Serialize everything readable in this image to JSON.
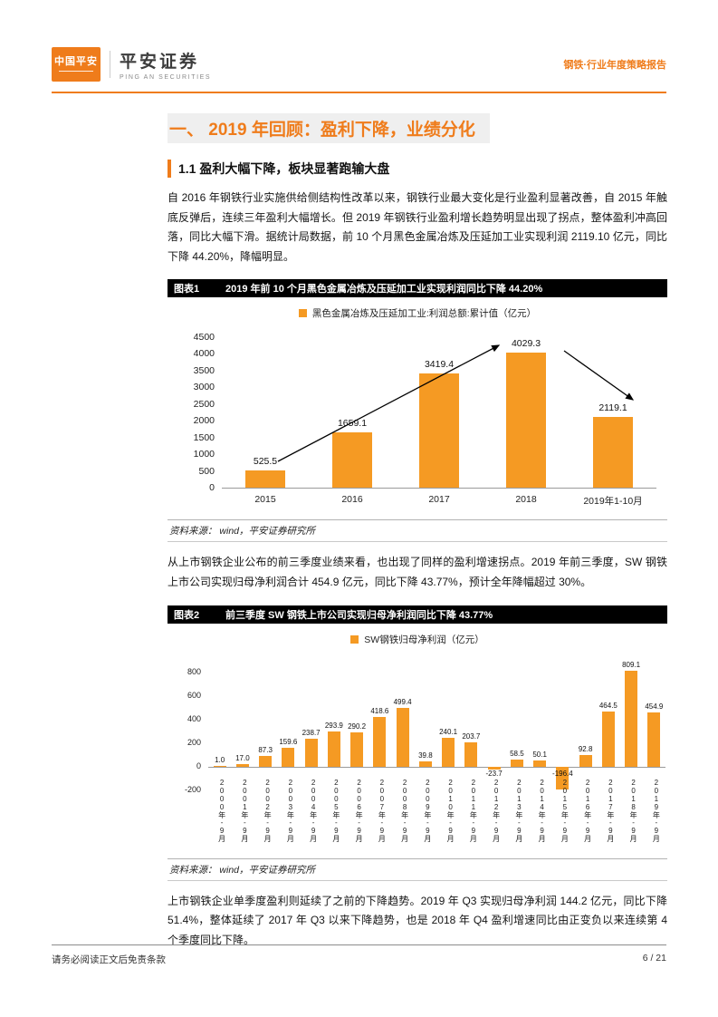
{
  "colors": {
    "accent": "#EF7C1B",
    "bar_color": "#F59A23",
    "chart_header_bg": "#000000",
    "section_title_bg": "#EFEFEF"
  },
  "header": {
    "logo_text": "中国平安",
    "brand": "平安证券",
    "brand_sub": "PING AN SECURITIES",
    "report_tag": "钢铁·行业年度策略报告"
  },
  "section": {
    "title": "一、 2019 年回顾：盈利下降，业绩分化",
    "subsection": "1.1 盈利大幅下降，板块显著跑输大盘"
  },
  "paragraphs": {
    "p1": "自 2016 年钢铁行业实施供给侧结构性改革以来，钢铁行业最大变化是行业盈利显著改善，自 2015 年触底反弹后，连续三年盈利大幅增长。但 2019 年钢铁行业盈利增长趋势明显出现了拐点，整体盈利冲高回落，同比大幅下滑。据统计局数据，前 10 个月黑色金属冶炼及压延加工业实现利润 2119.10 亿元，同比下降 44.20%，降幅明显。",
    "p2": "从上市钢铁企业公布的前三季度业绩来看，也出现了同样的盈利增速拐点。2019 年前三季度，SW 钢铁上市公司实现归母净利润合计 454.9 亿元，同比下降 43.77%，预计全年降幅超过 30%。",
    "p3": "上市钢铁企业单季度盈利则延续了之前的下降趋势。2019 年 Q3 实现归母净利润 144.2 亿元，同比下降 51.4%，整体延续了 2017 年 Q3 以来下降趋势，也是 2018 年 Q4 盈利增速同比由正变负以来连续第 4 个季度同比下降。"
  },
  "chart1": {
    "label": "图表1",
    "title": "2019 年前 10 个月黑色金属冶炼及压延加工业实现利润同比下降 44.20%",
    "source": "资料来源： wind，平安证券研究所",
    "chart_data": {
      "type": "bar",
      "legend": "黑色金属冶炼及压延加工业:利润总额:累计值（亿元）",
      "categories": [
        "2015",
        "2016",
        "2017",
        "2018",
        "2019年1-10月"
      ],
      "values": [
        525.5,
        1659.1,
        3419.4,
        4029.3,
        2119.1
      ],
      "ylim": [
        0,
        4500
      ],
      "ytick_step": 500,
      "grid": false,
      "legend_position": "top",
      "annotations": [
        "rise-trend-arrow from 2015 toward 2018",
        "fall-trend-arrow from 2018 toward 2019"
      ]
    }
  },
  "chart2": {
    "label": "图表2",
    "title": "前三季度 SW 钢铁上市公司实现归母净利润同比下降 43.77%",
    "source": "资料来源： wind，平安证券研究所",
    "chart_data": {
      "type": "bar",
      "legend": "SW钢铁归母净利润（亿元）",
      "categories": [
        "2000年-9月",
        "2001年-9月",
        "2002年-9月",
        "2003年-9月",
        "2004年-9月",
        "2005年-9月",
        "2006年-9月",
        "2007年-9月",
        "2008年-9月",
        "2009年-9月",
        "2010年-9月",
        "2011年-9月",
        "2012年-9月",
        "2013年-9月",
        "2014年-9月",
        "2015年-9月",
        "2016年-9月",
        "2017年-9月",
        "2018年-9月",
        "2019年-9月"
      ],
      "values": [
        1.0,
        17.0,
        87.3,
        159.6,
        238.7,
        293.9,
        290.2,
        418.6,
        499.4,
        39.8,
        240.1,
        203.7,
        -23.7,
        58.5,
        50.1,
        -196.4,
        92.8,
        464.5,
        809.1,
        454.9
      ],
      "ylim": [
        -200,
        800
      ],
      "ytick_step": 200,
      "grid": false,
      "legend_position": "top"
    }
  },
  "footer": {
    "disclaimer": "请务必阅读正文后免责条款",
    "page_number": "6 / 21"
  }
}
